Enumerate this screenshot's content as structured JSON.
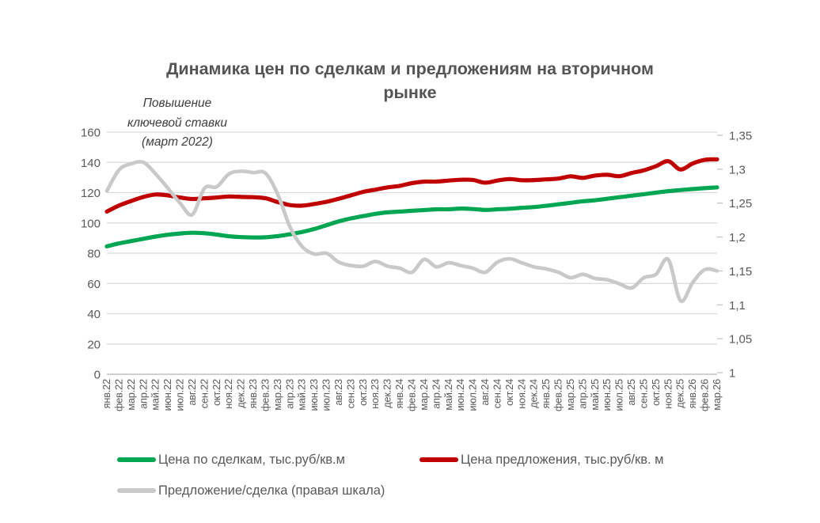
{
  "colors": {
    "deal_line": "#00A651",
    "offer_line": "#C00000",
    "ratio_line": "#C9C9C9",
    "gridline": "#D9D9D9",
    "axis_line": "#C2C2C2",
    "axis_text": "#595959",
    "title_text": "#545454",
    "annotation_text": "#3D3D3D"
  },
  "title": {
    "lines": [
      "Динамика цен по сделкам и предложениям на вторичном",
      "рынке"
    ]
  },
  "annotation": {
    "lines": [
      "Повышение",
      "ключевой ставки",
      "(март 2022)"
    ]
  },
  "legend": {
    "items": [
      {
        "label": "Цена по сделкам, тыс.руб/кв.м",
        "color": "#00A651"
      },
      {
        "label": "Цена предложения, тыс.руб/кв. м",
        "color": "#C00000"
      },
      {
        "label": "Предложение/сделка (правая шкала)",
        "color": "#C9C9C9"
      }
    ]
  },
  "chart_data": {
    "type": "line",
    "title": "Динамика цен по сделкам и предложениям на вторичном рынке",
    "annotation": "Повышение ключевой ставки (март 2022)",
    "grid": true,
    "legend_position": "bottom",
    "x_labels": [
      "янв.22",
      "фев.22",
      "мар.22",
      "апр.22",
      "май.22",
      "июн.22",
      "июл.22",
      "авг.22",
      "сен.22",
      "окт.22",
      "ноя.22",
      "дек.22",
      "янв.23",
      "фев.23",
      "мар.23",
      "апр.23",
      "май.23",
      "июн.23",
      "июл.23",
      "авг.23",
      "сен.23",
      "окт.23",
      "ноя.23",
      "дек.23",
      "янв.24",
      "фев.24",
      "мар.24",
      "апр.24",
      "май.24",
      "июн.24",
      "июл.24",
      "авг.24",
      "сен.24",
      "окт.24",
      "ноя.24",
      "дек.24",
      "янв.25",
      "фев.25",
      "мар.25",
      "апр.25",
      "май.25",
      "июн.25",
      "июл.25",
      "авг.25",
      "сен.25",
      "окт.25",
      "ноя.25",
      "дек.25",
      "янв.26",
      "фев.26",
      "мар.26"
    ],
    "left_axis": {
      "min": 0,
      "max": 160,
      "step": 20,
      "tick_labels": [
        "160",
        "140",
        "120",
        "100",
        "80",
        "60",
        "40",
        "20",
        "0"
      ]
    },
    "right_axis": {
      "min": 1,
      "max": 1.35,
      "step": 0.05,
      "tick_labels": [
        "1,35",
        "1,3",
        "1,25",
        "1,2",
        "1,15",
        "1,1",
        "1,05",
        "1"
      ]
    },
    "series": [
      {
        "name": "Цена по сделкам, тыс.руб/кв.м",
        "axis": "left",
        "color": "#00A651",
        "width": 5.2,
        "values": [
          84.5,
          86.5,
          88,
          89.5,
          91,
          92.2,
          93,
          93.5,
          93.2,
          92.3,
          91.2,
          90.6,
          90.4,
          90.5,
          91.3,
          92.5,
          94,
          96,
          98.5,
          101,
          103,
          104.5,
          106,
          107,
          107.5,
          108,
          108.5,
          109,
          109,
          109.5,
          109.2,
          108.6,
          109,
          109.4,
          110,
          110.5,
          111.3,
          112.3,
          113.3,
          114.3,
          115,
          116,
          117,
          118,
          119,
          120,
          121,
          121.7,
          122.4,
          123,
          123.5
        ]
      },
      {
        "name": "Цена предложения, тыс.руб/кв. м",
        "axis": "left",
        "color": "#C00000",
        "width": 5.2,
        "values": [
          107.5,
          111.5,
          114.5,
          117.2,
          118.8,
          118.2,
          116.8,
          115.8,
          116.3,
          116.8,
          117.5,
          117.2,
          117,
          116.3,
          113.8,
          111.8,
          111.4,
          112.5,
          114,
          116,
          118.2,
          120.5,
          122,
          123.5,
          124.5,
          126.3,
          127.3,
          127.3,
          128,
          128.5,
          128.4,
          126.6,
          128,
          129,
          128.2,
          128.3,
          128.8,
          129.3,
          130.8,
          129.8,
          131.3,
          131.8,
          130.9,
          133,
          134.8,
          137.5,
          140.8,
          135.3,
          139.3,
          141.7,
          142
        ]
      },
      {
        "name": "Предложение/сделка (правая шкала)",
        "axis": "right",
        "color": "#C9C9C9",
        "width": 4.6,
        "values": [
          1.268,
          1.299,
          1.308,
          1.31,
          1.293,
          1.272,
          1.25,
          1.233,
          1.272,
          1.274,
          1.293,
          1.297,
          1.295,
          1.294,
          1.263,
          1.215,
          1.186,
          1.175,
          1.176,
          1.163,
          1.158,
          1.157,
          1.164,
          1.157,
          1.154,
          1.148,
          1.167,
          1.156,
          1.162,
          1.158,
          1.154,
          1.148,
          1.163,
          1.168,
          1.162,
          1.156,
          1.153,
          1.148,
          1.14,
          1.145,
          1.139,
          1.137,
          1.131,
          1.125,
          1.14,
          1.145,
          1.167,
          1.106,
          1.133,
          1.152,
          1.15
        ]
      }
    ]
  }
}
